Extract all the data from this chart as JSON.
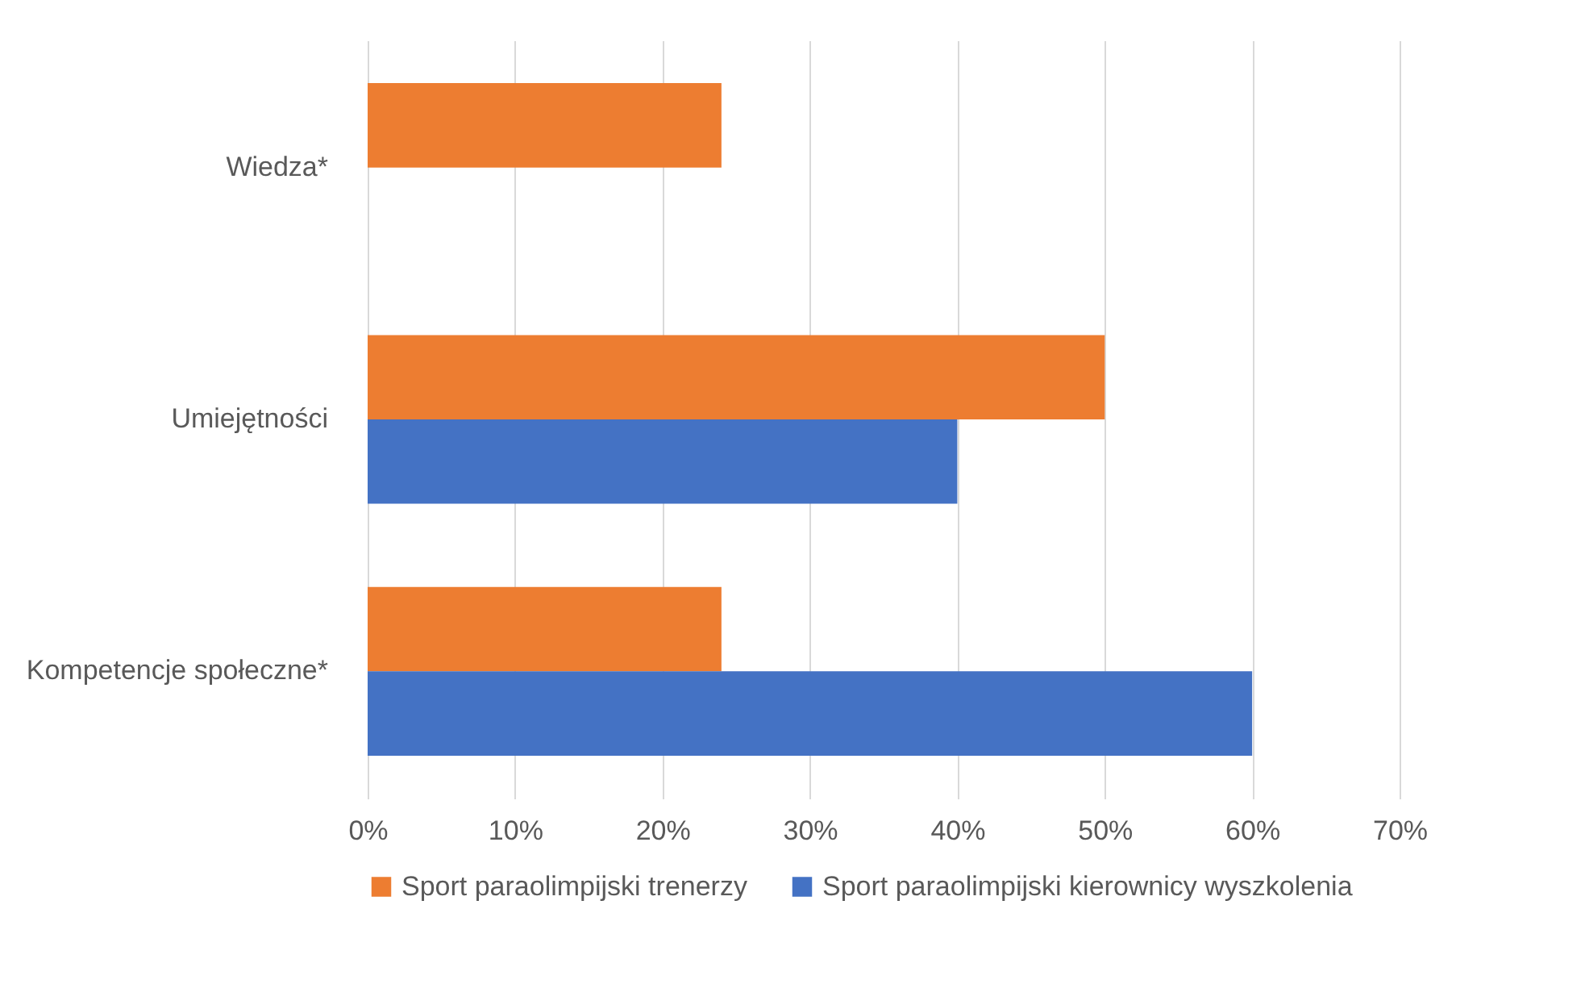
{
  "chart_data": {
    "type": "bar",
    "orientation": "horizontal",
    "categories": [
      "Wiedza*",
      "Umiejętności",
      "Kompetencje społeczne*"
    ],
    "series": [
      {
        "name": "Sport paraolimpijski trenerzy",
        "color": "#ed7d31",
        "values": [
          24,
          50,
          24
        ]
      },
      {
        "name": "Sport paraolimpijski kierownicy wyszkolenia",
        "color": "#4472c4",
        "values": [
          null,
          40,
          60
        ]
      }
    ],
    "xlim": [
      0,
      70
    ],
    "xticks": [
      {
        "value": 0,
        "label": "0%"
      },
      {
        "value": 10,
        "label": "10%"
      },
      {
        "value": 20,
        "label": "20%"
      },
      {
        "value": 30,
        "label": "30%"
      },
      {
        "value": 40,
        "label": "40%"
      },
      {
        "value": 50,
        "label": "50%"
      },
      {
        "value": 60,
        "label": "60%"
      },
      {
        "value": 70,
        "label": "70%"
      }
    ],
    "grid": "x",
    "legend": "bottom"
  }
}
